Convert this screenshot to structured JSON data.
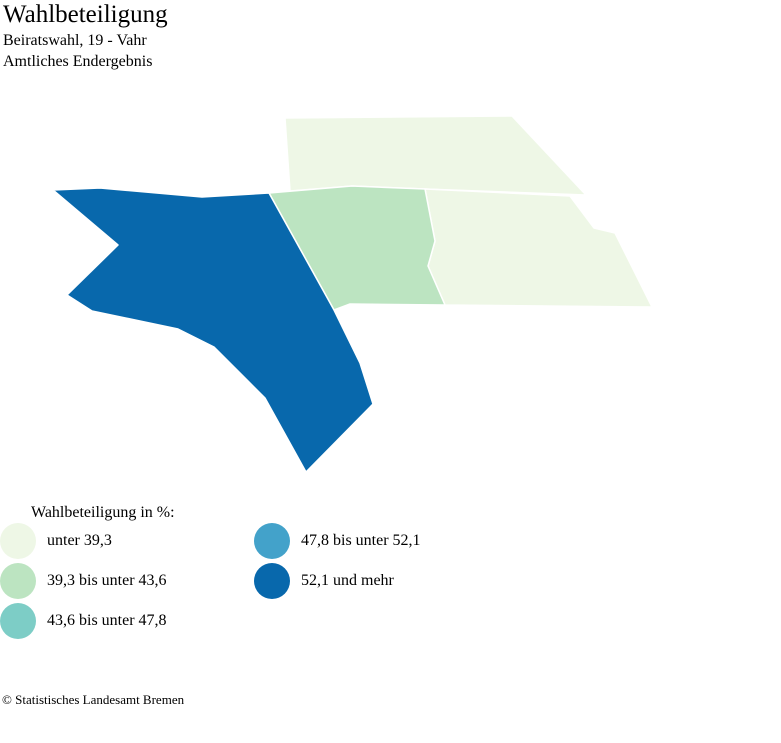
{
  "header": {
    "title": "Wahlbeteiligung",
    "subtitle": "Beiratswahl, 19 - Vahr",
    "subtitle2": "Amtliches Endergebnis"
  },
  "legend": {
    "title": "Wahlbeteiligung in %:",
    "items": [
      {
        "label": "unter 39,3",
        "color": "#eef7e6"
      },
      {
        "label": "39,3 bis unter 43,6",
        "color": "#bce4c1"
      },
      {
        "label": "43,6 bis unter 47,8",
        "color": "#7dcdc6"
      },
      {
        "label": "47,8 bis unter 52,1",
        "color": "#43a2ca"
      },
      {
        "label": "52,1 und mehr",
        "color": "#0868ac"
      }
    ]
  },
  "map": {
    "regions": [
      {
        "name": "region-north",
        "class_index": 0
      },
      {
        "name": "region-east",
        "class_index": 0
      },
      {
        "name": "region-center",
        "class_index": 1
      },
      {
        "name": "region-west",
        "class_index": 4
      }
    ]
  },
  "footer": {
    "copyright": "© Statistisches Landesamt Bremen"
  }
}
